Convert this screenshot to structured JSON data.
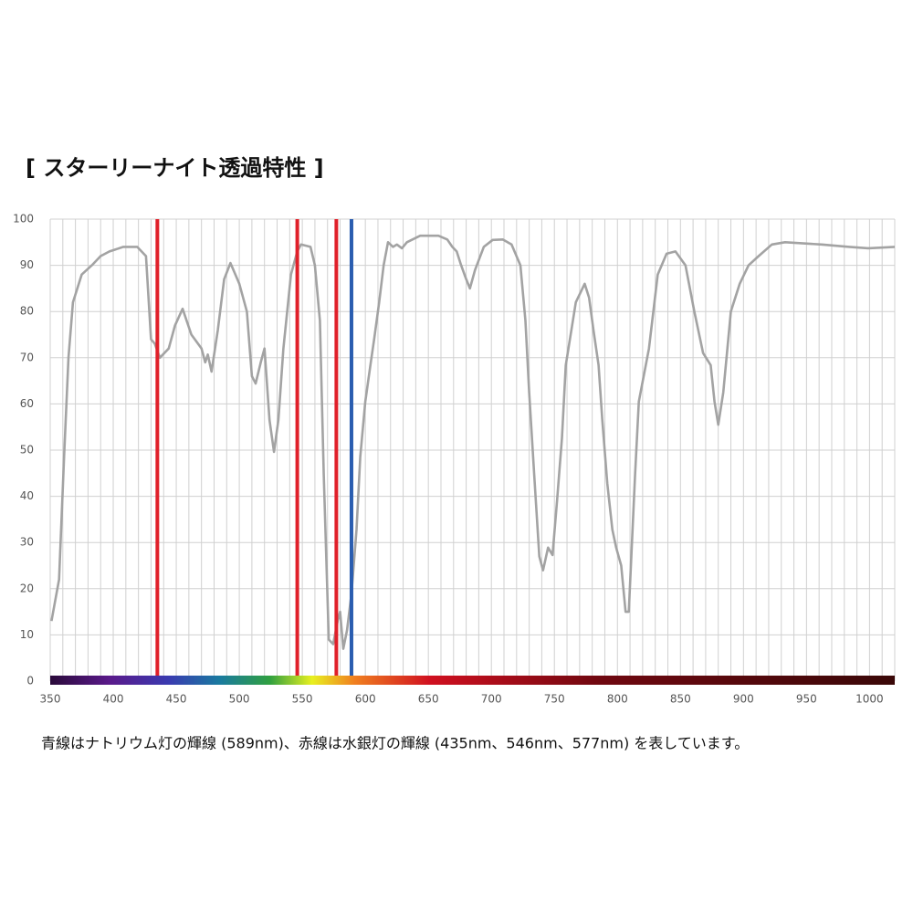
{
  "chart_data": {
    "type": "line",
    "title": "[ スターリーナイト透過特性 ]",
    "caption": "青線はナトリウム灯の輝線 (589nm)、赤線は水銀灯の輝線 (435nm、546nm、577nm) を表しています。",
    "x": [
      351,
      357,
      361,
      364.5,
      368,
      375,
      383,
      390,
      397,
      408,
      419,
      426,
      430,
      433,
      437,
      444,
      449,
      455,
      462,
      470,
      473,
      475,
      478,
      483,
      488,
      493,
      500,
      506,
      510,
      513,
      517,
      520,
      524,
      527.5,
      531,
      535,
      541,
      546,
      549,
      556.5,
      560,
      564,
      567,
      571,
      574.5,
      578,
      580,
      582.5,
      585.5,
      589,
      593,
      596,
      600,
      604,
      607,
      611,
      614.5,
      618,
      622,
      625,
      629,
      633,
      643.5,
      658,
      665,
      669,
      672.5,
      676,
      680,
      683,
      687,
      694,
      701,
      709,
      716,
      723,
      727,
      730,
      734,
      738,
      741,
      745,
      748.5,
      752,
      756,
      759,
      767,
      774,
      777.5,
      781,
      785,
      788,
      792,
      796,
      799,
      803,
      806.5,
      809,
      810,
      814,
      817,
      825,
      832,
      839,
      846,
      854,
      861,
      868,
      874,
      877,
      880,
      884,
      890,
      897,
      904,
      912,
      922.5,
      933,
      962,
      984,
      999,
      1020
    ],
    "series": [
      {
        "color": "#a3a3a3",
        "values": [
          13,
          22,
          48.6,
          70,
          82,
          88,
          90,
          92,
          93,
          94,
          94,
          92,
          74,
          73,
          70,
          72,
          77,
          80.6,
          75,
          72,
          69,
          70.7,
          67,
          76,
          87,
          90.5,
          86,
          80,
          66,
          64.4,
          69,
          72,
          56.5,
          49.6,
          56.5,
          72,
          88,
          93,
          94.5,
          94,
          90,
          78,
          44.7,
          9,
          8,
          13,
          15,
          7,
          11,
          19,
          32.8,
          48.6,
          60.5,
          68.4,
          74,
          82,
          90,
          95,
          94,
          94.5,
          93.7,
          95,
          96.4,
          96.4,
          95.6,
          94,
          93,
          90,
          87,
          85,
          89,
          94,
          95.5,
          95.6,
          94.5,
          90,
          78,
          62.5,
          44.7,
          27,
          24,
          28.9,
          27.3,
          38.7,
          52.6,
          68.4,
          82,
          86,
          83,
          76,
          68.4,
          56.5,
          42.7,
          32.8,
          28.9,
          25,
          15,
          15,
          21,
          44.7,
          60.5,
          72,
          88,
          92.5,
          93,
          90,
          80,
          71,
          68.4,
          60.5,
          55.5,
          62.5,
          80,
          86,
          90,
          92,
          94.5,
          95,
          94.5,
          94,
          93.7,
          94
        ]
      }
    ],
    "markers": [
      {
        "value": 435,
        "color": "#e0202a"
      },
      {
        "value": 546,
        "color": "#e0202a"
      },
      {
        "value": 577,
        "color": "#e0202a"
      },
      {
        "value": 589,
        "color": "#2a5db0"
      }
    ],
    "xlim": [
      350,
      1020
    ],
    "xticks": [
      350,
      400,
      450,
      500,
      550,
      600,
      650,
      700,
      750,
      800,
      850,
      900,
      950,
      1000
    ],
    "x_minor_ticks": [
      360,
      370,
      380,
      390,
      410,
      420,
      430,
      440,
      460,
      470,
      480,
      490,
      510,
      520,
      530,
      540,
      560,
      570,
      580,
      590,
      610,
      620,
      630,
      640,
      660,
      670,
      680,
      690,
      710,
      720,
      730,
      740,
      760,
      770,
      780,
      790,
      810,
      820,
      830,
      840,
      860,
      870,
      880,
      890,
      910,
      920,
      930,
      940,
      960,
      970,
      980,
      990,
      1010,
      1020
    ],
    "ylim": [
      0,
      100
    ],
    "yticks": [
      0,
      10,
      20,
      30,
      40,
      50,
      60,
      70,
      80,
      90,
      100
    ],
    "grid": true
  }
}
